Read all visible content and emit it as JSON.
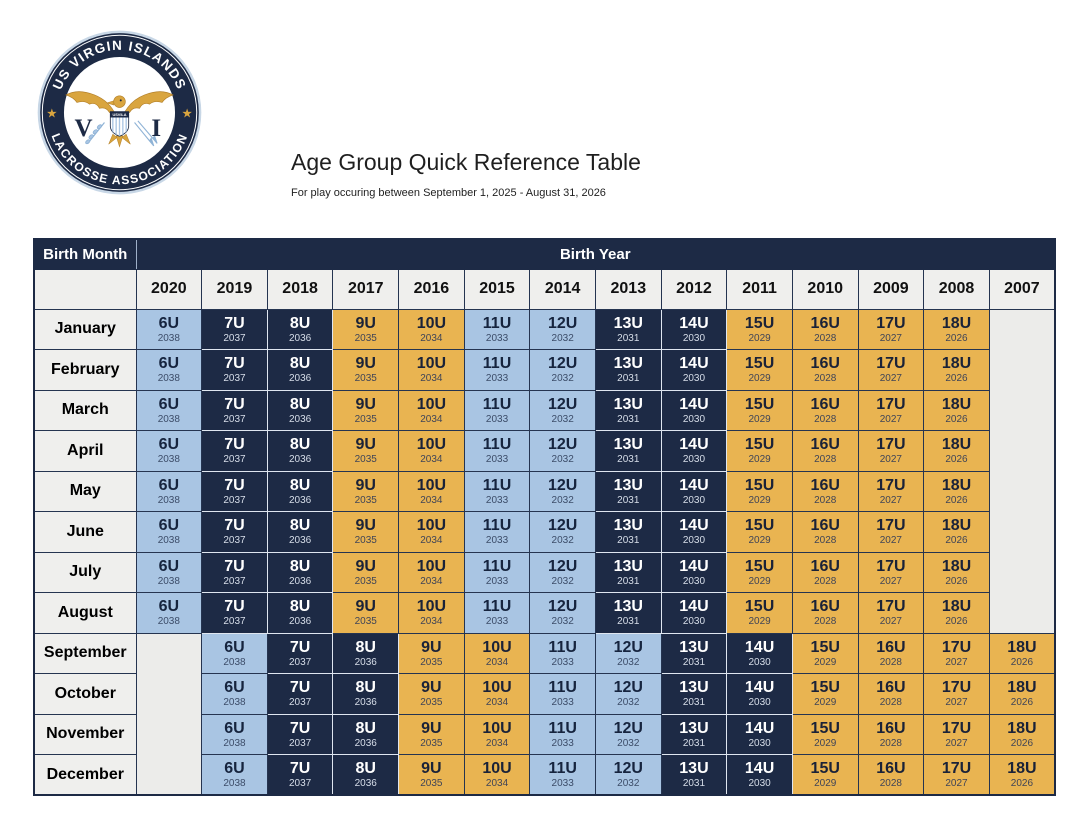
{
  "logo": {
    "arc_top_text": "US VIRGIN ISLANDS",
    "arc_bottom_text": "LACROSSE ASSOCIATION",
    "left_letter": "V",
    "right_letter": "I",
    "shield_text": "USVILA"
  },
  "header": {
    "title": "Age Group Quick Reference Table",
    "subtitle": "For play occuring between September 1, 2025 -  August 31, 2026"
  },
  "colors": {
    "navy": "#1d2a45",
    "light_blue": "#a9c5e3",
    "gold": "#e9b451",
    "header_gray": "#efefed",
    "empty_gray": "#ececea"
  },
  "table": {
    "corner_header": "Birth Month",
    "span_header": "Birth Year",
    "years": [
      "2020",
      "2019",
      "2018",
      "2017",
      "2016",
      "2015",
      "2014",
      "2013",
      "2012",
      "2011",
      "2010",
      "2009",
      "2008",
      "2007"
    ],
    "age_groups": {
      "6U": {
        "year": "2038",
        "color": "blue"
      },
      "7U": {
        "year": "2037",
        "color": "navy"
      },
      "8U": {
        "year": "2036",
        "color": "navy"
      },
      "9U": {
        "year": "2035",
        "color": "gold"
      },
      "10U": {
        "year": "2034",
        "color": "gold"
      },
      "11U": {
        "year": "2033",
        "color": "blue"
      },
      "12U": {
        "year": "2032",
        "color": "blue"
      },
      "13U": {
        "year": "2031",
        "color": "navy"
      },
      "14U": {
        "year": "2030",
        "color": "navy"
      },
      "15U": {
        "year": "2029",
        "color": "gold"
      },
      "16U": {
        "year": "2028",
        "color": "gold"
      },
      "17U": {
        "year": "2027",
        "color": "gold"
      },
      "18U": {
        "year": "2026",
        "color": "gold"
      }
    },
    "rows": [
      {
        "month": "January",
        "cells": [
          "6U",
          "7U",
          "8U",
          "9U",
          "10U",
          "11U",
          "12U",
          "13U",
          "14U",
          "15U",
          "16U",
          "17U",
          "18U",
          ""
        ]
      },
      {
        "month": "February",
        "cells": [
          "6U",
          "7U",
          "8U",
          "9U",
          "10U",
          "11U",
          "12U",
          "13U",
          "14U",
          "15U",
          "16U",
          "17U",
          "18U",
          ""
        ]
      },
      {
        "month": "March",
        "cells": [
          "6U",
          "7U",
          "8U",
          "9U",
          "10U",
          "11U",
          "12U",
          "13U",
          "14U",
          "15U",
          "16U",
          "17U",
          "18U",
          ""
        ]
      },
      {
        "month": "April",
        "cells": [
          "6U",
          "7U",
          "8U",
          "9U",
          "10U",
          "11U",
          "12U",
          "13U",
          "14U",
          "15U",
          "16U",
          "17U",
          "18U",
          ""
        ]
      },
      {
        "month": "May",
        "cells": [
          "6U",
          "7U",
          "8U",
          "9U",
          "10U",
          "11U",
          "12U",
          "13U",
          "14U",
          "15U",
          "16U",
          "17U",
          "18U",
          ""
        ]
      },
      {
        "month": "June",
        "cells": [
          "6U",
          "7U",
          "8U",
          "9U",
          "10U",
          "11U",
          "12U",
          "13U",
          "14U",
          "15U",
          "16U",
          "17U",
          "18U",
          ""
        ]
      },
      {
        "month": "July",
        "cells": [
          "6U",
          "7U",
          "8U",
          "9U",
          "10U",
          "11U",
          "12U",
          "13U",
          "14U",
          "15U",
          "16U",
          "17U",
          "18U",
          ""
        ]
      },
      {
        "month": "August",
        "cells": [
          "6U",
          "7U",
          "8U",
          "9U",
          "10U",
          "11U",
          "12U",
          "13U",
          "14U",
          "15U",
          "16U",
          "17U",
          "18U",
          ""
        ]
      },
      {
        "month": "September",
        "cells": [
          "",
          "6U",
          "7U",
          "8U",
          "9U",
          "10U",
          "11U",
          "12U",
          "13U",
          "14U",
          "15U",
          "16U",
          "17U",
          "18U"
        ]
      },
      {
        "month": "October",
        "cells": [
          "",
          "6U",
          "7U",
          "8U",
          "9U",
          "10U",
          "11U",
          "12U",
          "13U",
          "14U",
          "15U",
          "16U",
          "17U",
          "18U"
        ]
      },
      {
        "month": "November",
        "cells": [
          "",
          "6U",
          "7U",
          "8U",
          "9U",
          "10U",
          "11U",
          "12U",
          "13U",
          "14U",
          "15U",
          "16U",
          "17U",
          "18U"
        ]
      },
      {
        "month": "December",
        "cells": [
          "",
          "6U",
          "7U",
          "8U",
          "9U",
          "10U",
          "11U",
          "12U",
          "13U",
          "14U",
          "15U",
          "16U",
          "17U",
          "18U"
        ]
      }
    ]
  }
}
